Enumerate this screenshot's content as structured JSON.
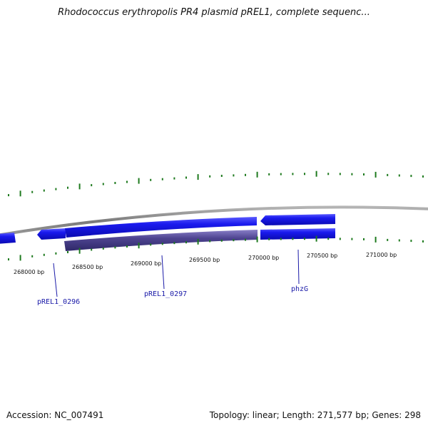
{
  "title": "Rhodococcus erythropolis PR4 plasmid pREL1, complete sequenc...",
  "footer": {
    "accession": "Accession: NC_007491",
    "summary": "Topology: linear; Length: 271,577 bp; Genes: 298"
  },
  "ticks": [
    "268000 bp",
    "268500 bp",
    "269000 bp",
    "269500 bp",
    "270000 bp",
    "270500 bp",
    "271000 bp"
  ],
  "genes": [
    {
      "label": "pREL1_0296"
    },
    {
      "label": "pREL1_0297"
    },
    {
      "label": "phzG"
    }
  ],
  "colors": {
    "gene_forward": "#1616e0",
    "gene_highlight": "#4a3f8a",
    "backbone": "#8a8a8a",
    "gc_ticks": "#1e7a1e",
    "label": "#1a1aa8"
  }
}
